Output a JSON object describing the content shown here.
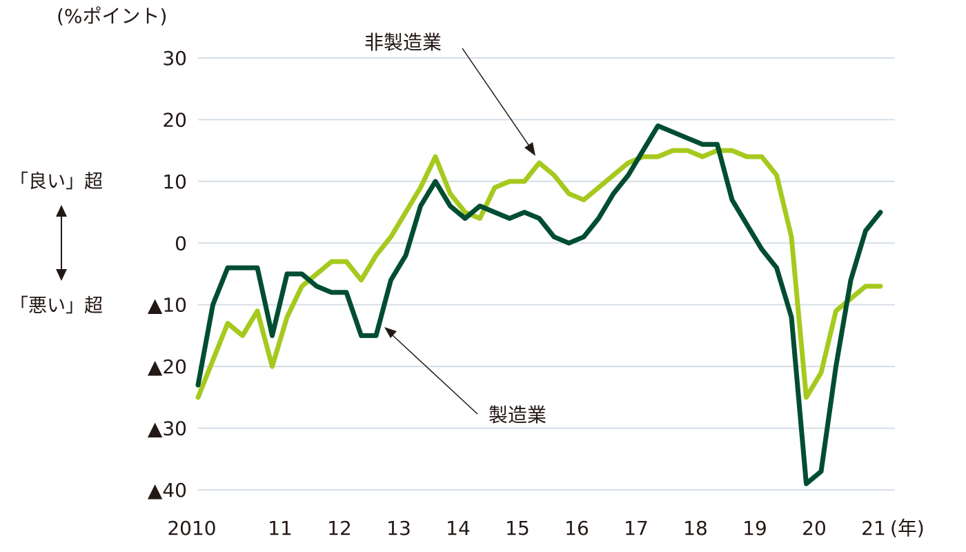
{
  "chart_data": {
    "type": "line",
    "y_unit_label": "(%ポイント)",
    "x_unit_label": "(年)",
    "ylim": [
      -40,
      30
    ],
    "yticks": [
      30,
      20,
      10,
      0,
      -10,
      -20,
      -30,
      -40
    ],
    "ytick_labels": [
      "30",
      "20",
      "10",
      "0",
      "▲10",
      "▲20",
      "▲30",
      "▲40"
    ],
    "grid": true,
    "x_start_year": 2010,
    "quarters_per_year": 4,
    "xtick_labels": [
      "2010",
      "11",
      "12",
      "13",
      "14",
      "15",
      "16",
      "17",
      "18",
      "19",
      "20",
      "21"
    ],
    "side_labels": {
      "good": "「良い」超",
      "bad": "「悪い」超"
    },
    "series": [
      {
        "name": "製造業",
        "color": "#004d32",
        "values": [
          -23,
          -10,
          -4,
          -4,
          -4,
          -15,
          -5,
          -5,
          -7,
          -8,
          -8,
          -15,
          -15,
          -6,
          -2,
          6,
          10,
          6,
          4,
          6,
          5,
          4,
          5,
          4,
          1,
          0,
          1,
          4,
          8,
          11,
          15,
          19,
          18,
          17,
          16,
          16,
          7,
          3,
          -1,
          -4,
          -12,
          -39,
          -37,
          -20,
          -6,
          2,
          5
        ]
      },
      {
        "name": "非製造業",
        "color": "#a6c91e",
        "values": [
          -25,
          -19,
          -13,
          -15,
          -11,
          -20,
          -12,
          -7,
          -5,
          -3,
          -3,
          -6,
          -2,
          1,
          5,
          9,
          14,
          8,
          5,
          4,
          9,
          10,
          10,
          13,
          11,
          8,
          7,
          9,
          11,
          13,
          14,
          14,
          15,
          15,
          14,
          15,
          15,
          14,
          14,
          11,
          1,
          -25,
          -21,
          -11,
          -9,
          -7,
          -7
        ]
      }
    ]
  }
}
